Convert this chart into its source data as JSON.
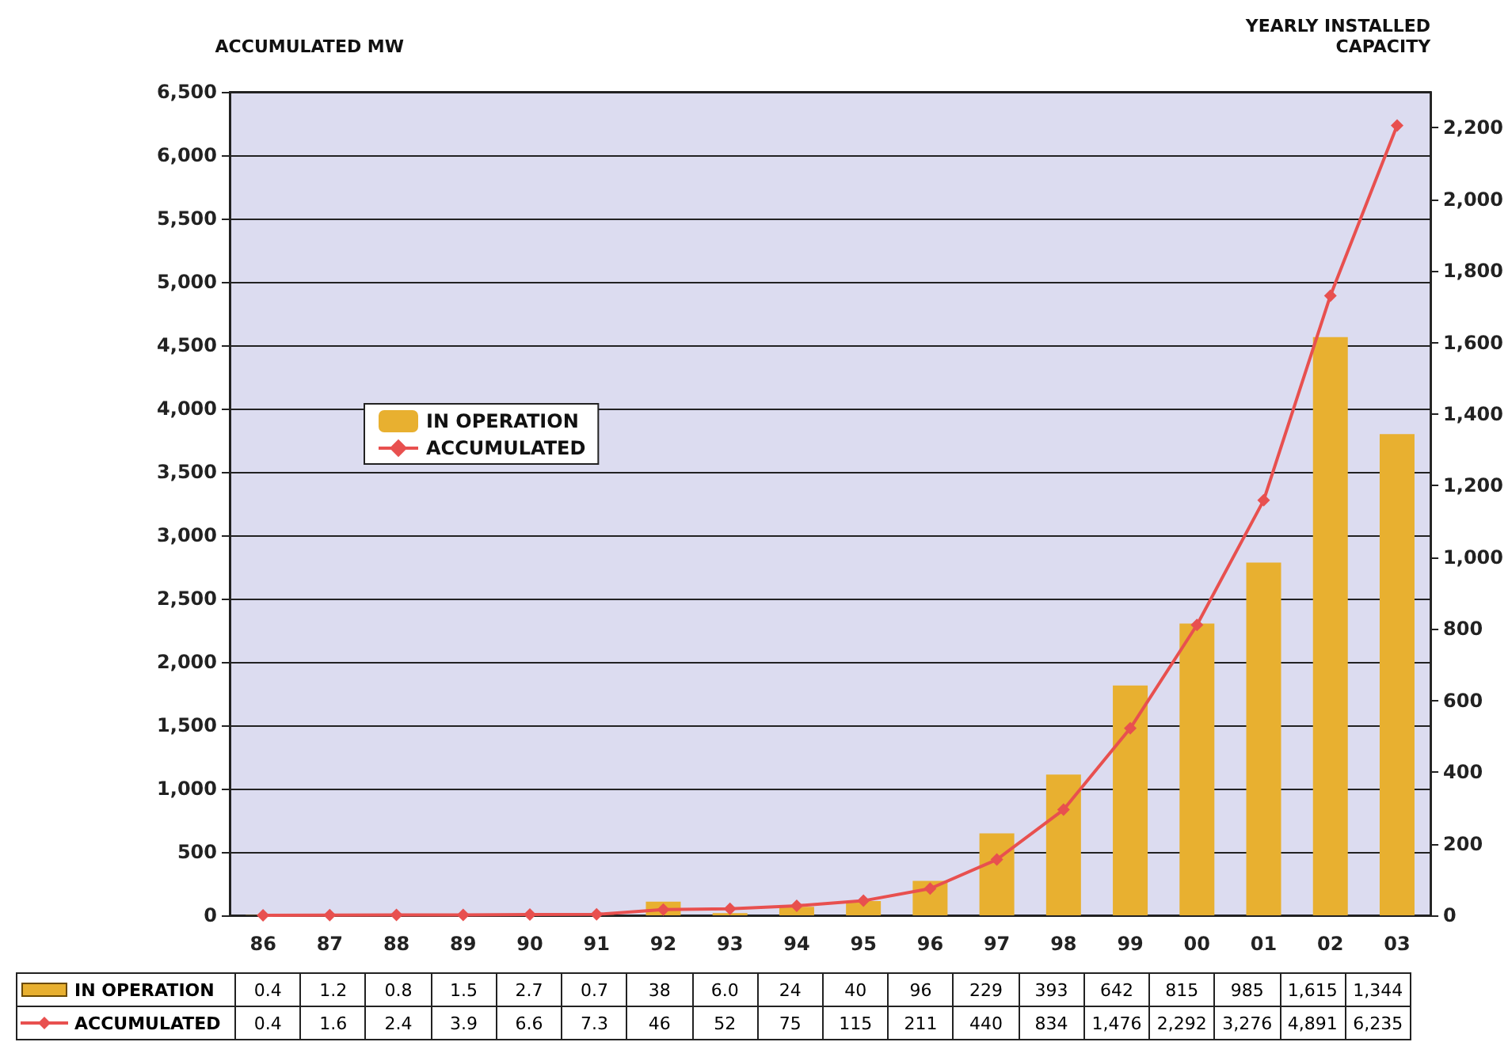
{
  "chart_data": {
    "type": "bar",
    "ylabel": "ACCUMULATED MW",
    "y2label": "YEARLY INSTALLED\nCAPACITY",
    "categories": [
      "86",
      "87",
      "88",
      "89",
      "90",
      "91",
      "92",
      "93",
      "94",
      "95",
      "96",
      "97",
      "98",
      "99",
      "00",
      "01",
      "02",
      "03"
    ],
    "series": [
      {
        "name": "IN OPERATION",
        "axis": "y2",
        "color": "#e8b030",
        "values": [
          0.4,
          1.2,
          0.8,
          1.5,
          2.7,
          0.7,
          38,
          6.0,
          24,
          40,
          96,
          229,
          393,
          642,
          815,
          985,
          1615,
          1344
        ],
        "value_labels": [
          "0.4",
          "1.2",
          "0.8",
          "1.5",
          "2.7",
          "0.7",
          "38",
          "6.0",
          "24",
          "40",
          "96",
          "229",
          "393",
          "642",
          "815",
          "985",
          "1,615",
          "1,344"
        ]
      },
      {
        "name": "ACCUMULATED",
        "type": "line",
        "color": "#e8504f",
        "values": [
          0.4,
          1.6,
          2.4,
          3.9,
          6.6,
          7.3,
          46,
          52,
          75,
          115,
          211,
          440,
          834,
          1476,
          2292,
          3276,
          4891,
          6235
        ],
        "value_labels": [
          "0.4",
          "1.6",
          "2.4",
          "3.9",
          "6.6",
          "7.3",
          "46",
          "52",
          "75",
          "115",
          "211",
          "440",
          "834",
          "1,476",
          "2,292",
          "3,276",
          "4,891",
          "6,235"
        ]
      }
    ],
    "ylim": [
      0,
      6500
    ],
    "yticks": [
      0,
      500,
      {
        "value": 1000,
        "label": "1,000"
      },
      {
        "value": 1500,
        "label": "1,500"
      },
      {
        "value": 2000,
        "label": "2,000"
      },
      {
        "value": 2500,
        "label": "2,500"
      },
      {
        "value": 3000,
        "label": "3,000"
      },
      {
        "value": 3500,
        "label": "3,500"
      },
      {
        "value": 4000,
        "label": "4,000"
      },
      {
        "value": 4500,
        "label": "4,500"
      },
      {
        "value": 5000,
        "label": "5,000"
      },
      {
        "value": 5500,
        "label": "5,500"
      },
      {
        "value": 6000,
        "label": "6,000"
      },
      {
        "value": 6500,
        "label": "6,500"
      }
    ],
    "y2lim": [
      0,
      2300
    ],
    "y2ticks": [
      0,
      200,
      400,
      600,
      800,
      {
        "value": 1000,
        "label": "1,000"
      },
      {
        "value": 1200,
        "label": "1,200"
      },
      {
        "value": 1400,
        "label": "1,400"
      },
      {
        "value": 1600,
        "label": "1,600"
      },
      {
        "value": 1800,
        "label": "1,800"
      },
      {
        "value": 2000,
        "label": "2,000"
      },
      {
        "value": 2200,
        "label": "2,200"
      }
    ],
    "grid": "y",
    "legend": "left",
    "marker": "diamond",
    "line_style": "solid"
  }
}
